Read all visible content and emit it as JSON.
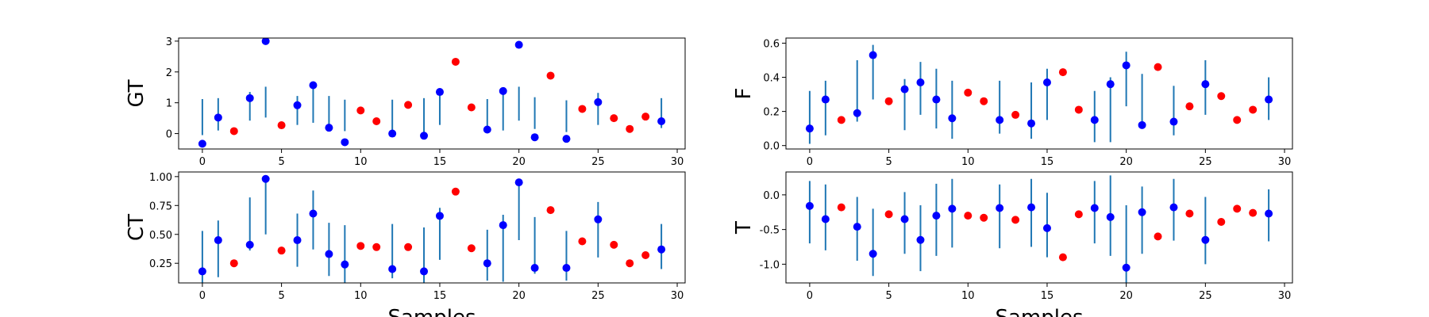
{
  "chart_data": [
    {
      "type": "scatter",
      "ylabel": "GT",
      "xlabel": "",
      "xlim": [
        -1.5,
        30.5
      ],
      "ylim": [
        -0.5,
        3.1
      ],
      "xticks": [
        "0",
        "5",
        "10",
        "15",
        "20",
        "25",
        "30"
      ],
      "yticks": [
        "0",
        "1",
        "2",
        "3"
      ],
      "series": [
        {
          "color": "#0000ff",
          "with_errorbars": true,
          "points": [
            {
              "x": 0,
              "y": -0.33,
              "lo": -0.05,
              "hi": 1.12
            },
            {
              "x": 1,
              "y": 0.52,
              "lo": 0.1,
              "hi": 1.15
            },
            {
              "x": 3,
              "y": 1.15,
              "lo": 0.42,
              "hi": 1.35
            },
            {
              "x": 4,
              "y": 3.0,
              "lo": 0.52,
              "hi": 1.52
            },
            {
              "x": 6,
              "y": 0.92,
              "lo": 0.28,
              "hi": 1.22
            },
            {
              "x": 7,
              "y": 1.57,
              "lo": 0.35,
              "hi": 1.55
            },
            {
              "x": 8,
              "y": 0.19,
              "lo": 0.22,
              "hi": 1.22
            },
            {
              "x": 9,
              "y": -0.28,
              "lo": 0.08,
              "hi": 1.1
            },
            {
              "x": 12,
              "y": 0.0,
              "lo": 0.12,
              "hi": 1.1
            },
            {
              "x": 14,
              "y": -0.07,
              "lo": 0.02,
              "hi": 1.15
            },
            {
              "x": 15,
              "y": 1.35,
              "lo": 0.28,
              "hi": 1.35
            },
            {
              "x": 18,
              "y": 0.13,
              "lo": 0.12,
              "hi": 1.12
            },
            {
              "x": 19,
              "y": 1.38,
              "lo": 0.1,
              "hi": 1.42
            },
            {
              "x": 20,
              "y": 2.88,
              "lo": 0.42,
              "hi": 1.52
            },
            {
              "x": 21,
              "y": -0.12,
              "lo": 0.15,
              "hi": 1.18
            },
            {
              "x": 23,
              "y": -0.17,
              "lo": 0.05,
              "hi": 1.08
            },
            {
              "x": 25,
              "y": 1.02,
              "lo": 0.28,
              "hi": 1.32
            },
            {
              "x": 29,
              "y": 0.4,
              "lo": 0.18,
              "hi": 1.15
            }
          ]
        },
        {
          "color": "#ff0000",
          "with_errorbars": false,
          "points": [
            {
              "x": 2,
              "y": 0.08
            },
            {
              "x": 5,
              "y": 0.27
            },
            {
              "x": 10,
              "y": 0.75
            },
            {
              "x": 11,
              "y": 0.4
            },
            {
              "x": 13,
              "y": 0.93
            },
            {
              "x": 16,
              "y": 2.33
            },
            {
              "x": 17,
              "y": 0.85
            },
            {
              "x": 22,
              "y": 1.88
            },
            {
              "x": 24,
              "y": 0.8
            },
            {
              "x": 26,
              "y": 0.5
            },
            {
              "x": 27,
              "y": 0.15
            },
            {
              "x": 28,
              "y": 0.55
            }
          ]
        }
      ]
    },
    {
      "type": "scatter",
      "ylabel": "F",
      "xlabel": "",
      "xlim": [
        -1.5,
        30.5
      ],
      "ylim": [
        -0.02,
        0.63
      ],
      "xticks": [
        "0",
        "5",
        "10",
        "15",
        "20",
        "25",
        "30"
      ],
      "yticks": [
        "0.0",
        "0.2",
        "0.4",
        "0.6"
      ],
      "series": [
        {
          "color": "#0000ff",
          "with_errorbars": true,
          "points": [
            {
              "x": 0,
              "y": 0.1,
              "lo": 0.01,
              "hi": 0.32
            },
            {
              "x": 1,
              "y": 0.27,
              "lo": 0.06,
              "hi": 0.38
            },
            {
              "x": 3,
              "y": 0.19,
              "lo": 0.14,
              "hi": 0.5
            },
            {
              "x": 4,
              "y": 0.53,
              "lo": 0.27,
              "hi": 0.59
            },
            {
              "x": 6,
              "y": 0.33,
              "lo": 0.09,
              "hi": 0.39
            },
            {
              "x": 7,
              "y": 0.37,
              "lo": 0.18,
              "hi": 0.49
            },
            {
              "x": 8,
              "y": 0.27,
              "lo": 0.1,
              "hi": 0.45
            },
            {
              "x": 9,
              "y": 0.16,
              "lo": 0.04,
              "hi": 0.38
            },
            {
              "x": 12,
              "y": 0.15,
              "lo": 0.07,
              "hi": 0.38
            },
            {
              "x": 14,
              "y": 0.13,
              "lo": 0.04,
              "hi": 0.37
            },
            {
              "x": 15,
              "y": 0.37,
              "lo": 0.15,
              "hi": 0.45
            },
            {
              "x": 18,
              "y": 0.15,
              "lo": 0.02,
              "hi": 0.32
            },
            {
              "x": 19,
              "y": 0.36,
              "lo": 0.02,
              "hi": 0.4
            },
            {
              "x": 20,
              "y": 0.47,
              "lo": 0.23,
              "hi": 0.55
            },
            {
              "x": 21,
              "y": 0.12,
              "lo": 0.11,
              "hi": 0.42
            },
            {
              "x": 23,
              "y": 0.14,
              "lo": 0.06,
              "hi": 0.35
            },
            {
              "x": 25,
              "y": 0.36,
              "lo": 0.18,
              "hi": 0.5
            },
            {
              "x": 29,
              "y": 0.27,
              "lo": 0.15,
              "hi": 0.4
            }
          ]
        },
        {
          "color": "#ff0000",
          "with_errorbars": false,
          "points": [
            {
              "x": 2,
              "y": 0.15
            },
            {
              "x": 5,
              "y": 0.26
            },
            {
              "x": 10,
              "y": 0.31
            },
            {
              "x": 11,
              "y": 0.26
            },
            {
              "x": 13,
              "y": 0.18
            },
            {
              "x": 16,
              "y": 0.43
            },
            {
              "x": 17,
              "y": 0.21
            },
            {
              "x": 22,
              "y": 0.46
            },
            {
              "x": 24,
              "y": 0.23
            },
            {
              "x": 26,
              "y": 0.29
            },
            {
              "x": 27,
              "y": 0.15
            },
            {
              "x": 28,
              "y": 0.21
            }
          ]
        }
      ]
    },
    {
      "type": "scatter",
      "ylabel": "CT",
      "xlabel": "Samples",
      "xlim": [
        -1.5,
        30.5
      ],
      "ylim": [
        0.08,
        1.04
      ],
      "xticks": [
        "0",
        "5",
        "10",
        "15",
        "20",
        "25",
        "30"
      ],
      "yticks": [
        "0.25",
        "0.50",
        "0.75",
        "1.00"
      ],
      "series": [
        {
          "color": "#0000ff",
          "with_errorbars": true,
          "points": [
            {
              "x": 0,
              "y": 0.18,
              "lo": 0.07,
              "hi": 0.53
            },
            {
              "x": 1,
              "y": 0.45,
              "lo": 0.13,
              "hi": 0.62
            },
            {
              "x": 3,
              "y": 0.41,
              "lo": 0.36,
              "hi": 0.82
            },
            {
              "x": 4,
              "y": 0.98,
              "lo": 0.5,
              "hi": 0.98
            },
            {
              "x": 6,
              "y": 0.45,
              "lo": 0.22,
              "hi": 0.68
            },
            {
              "x": 7,
              "y": 0.68,
              "lo": 0.37,
              "hi": 0.88
            },
            {
              "x": 8,
              "y": 0.33,
              "lo": 0.14,
              "hi": 0.6
            },
            {
              "x": 9,
              "y": 0.24,
              "lo": 0.07,
              "hi": 0.58
            },
            {
              "x": 12,
              "y": 0.2,
              "lo": 0.12,
              "hi": 0.59
            },
            {
              "x": 14,
              "y": 0.18,
              "lo": 0.06,
              "hi": 0.56
            },
            {
              "x": 15,
              "y": 0.66,
              "lo": 0.28,
              "hi": 0.73
            },
            {
              "x": 18,
              "y": 0.25,
              "lo": 0.1,
              "hi": 0.54
            },
            {
              "x": 19,
              "y": 0.58,
              "lo": 0.09,
              "hi": 0.67
            },
            {
              "x": 20,
              "y": 0.95,
              "lo": 0.45,
              "hi": 0.95
            },
            {
              "x": 21,
              "y": 0.21,
              "lo": 0.16,
              "hi": 0.65
            },
            {
              "x": 23,
              "y": 0.21,
              "lo": 0.1,
              "hi": 0.53
            },
            {
              "x": 25,
              "y": 0.63,
              "lo": 0.3,
              "hi": 0.78
            },
            {
              "x": 29,
              "y": 0.37,
              "lo": 0.2,
              "hi": 0.59
            }
          ]
        },
        {
          "color": "#ff0000",
          "with_errorbars": false,
          "points": [
            {
              "x": 2,
              "y": 0.25
            },
            {
              "x": 5,
              "y": 0.36
            },
            {
              "x": 10,
              "y": 0.4
            },
            {
              "x": 11,
              "y": 0.39
            },
            {
              "x": 13,
              "y": 0.39
            },
            {
              "x": 16,
              "y": 0.87
            },
            {
              "x": 17,
              "y": 0.38
            },
            {
              "x": 22,
              "y": 0.71
            },
            {
              "x": 24,
              "y": 0.44
            },
            {
              "x": 26,
              "y": 0.41
            },
            {
              "x": 27,
              "y": 0.25
            },
            {
              "x": 28,
              "y": 0.32
            }
          ]
        }
      ]
    },
    {
      "type": "scatter",
      "ylabel": "T",
      "xlabel": "Samples",
      "xlim": [
        -1.5,
        30.5
      ],
      "ylim": [
        -1.27,
        0.33
      ],
      "xticks": [
        "0",
        "5",
        "10",
        "15",
        "20",
        "25",
        "30"
      ],
      "yticks": [
        "0.0",
        "-0.5",
        "-1.0"
      ],
      "series": [
        {
          "color": "#0000ff",
          "with_errorbars": true,
          "points": [
            {
              "x": 0,
              "y": -0.16,
              "lo": -0.7,
              "hi": 0.2
            },
            {
              "x": 1,
              "y": -0.35,
              "lo": -0.8,
              "hi": 0.15
            },
            {
              "x": 3,
              "y": -0.46,
              "lo": -0.95,
              "hi": -0.03
            },
            {
              "x": 4,
              "y": -0.85,
              "lo": -1.17,
              "hi": -0.2
            },
            {
              "x": 6,
              "y": -0.35,
              "lo": -0.85,
              "hi": 0.04
            },
            {
              "x": 7,
              "y": -0.65,
              "lo": -1.1,
              "hi": -0.15
            },
            {
              "x": 8,
              "y": -0.3,
              "lo": -0.88,
              "hi": 0.16
            },
            {
              "x": 9,
              "y": -0.2,
              "lo": -0.76,
              "hi": 0.23
            },
            {
              "x": 12,
              "y": -0.19,
              "lo": -0.77,
              "hi": 0.15
            },
            {
              "x": 14,
              "y": -0.18,
              "lo": -0.75,
              "hi": 0.23
            },
            {
              "x": 15,
              "y": -0.48,
              "lo": -0.9,
              "hi": 0.03
            },
            {
              "x": 18,
              "y": -0.19,
              "lo": -0.7,
              "hi": 0.2
            },
            {
              "x": 19,
              "y": -0.32,
              "lo": -0.88,
              "hi": 0.28
            },
            {
              "x": 20,
              "y": -1.05,
              "lo": -1.27,
              "hi": -0.15
            },
            {
              "x": 21,
              "y": -0.25,
              "lo": -0.85,
              "hi": 0.12
            },
            {
              "x": 23,
              "y": -0.18,
              "lo": -0.66,
              "hi": 0.23
            },
            {
              "x": 25,
              "y": -0.65,
              "lo": -1.0,
              "hi": -0.03
            },
            {
              "x": 29,
              "y": -0.27,
              "lo": -0.67,
              "hi": 0.08
            }
          ]
        },
        {
          "color": "#ff0000",
          "with_errorbars": false,
          "points": [
            {
              "x": 2,
              "y": -0.18
            },
            {
              "x": 5,
              "y": -0.28
            },
            {
              "x": 10,
              "y": -0.3
            },
            {
              "x": 11,
              "y": -0.33
            },
            {
              "x": 13,
              "y": -0.36
            },
            {
              "x": 16,
              "y": -0.9
            },
            {
              "x": 17,
              "y": -0.28
            },
            {
              "x": 22,
              "y": -0.6
            },
            {
              "x": 24,
              "y": -0.27
            },
            {
              "x": 26,
              "y": -0.39
            },
            {
              "x": 27,
              "y": -0.2
            },
            {
              "x": 28,
              "y": -0.26
            }
          ]
        }
      ]
    }
  ],
  "colors": {
    "errorbar": "#1f77b4",
    "axes": "#000000"
  }
}
